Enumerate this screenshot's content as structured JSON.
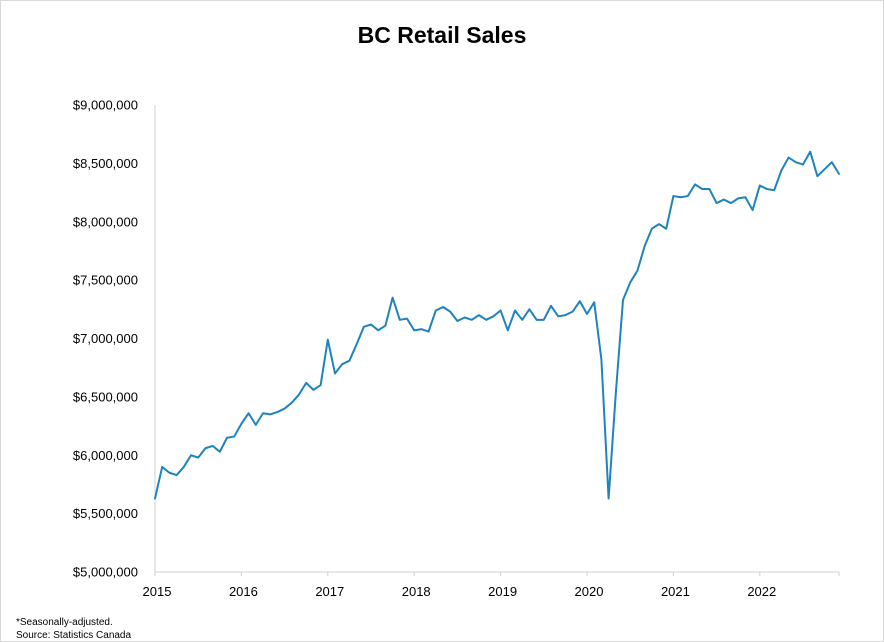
{
  "chart_data": {
    "type": "line",
    "title": "BC Retail Sales",
    "xlabel": "",
    "ylabel": "",
    "ylim": [
      5000000,
      9000000
    ],
    "xlim": [
      "2015-01",
      "2022-12"
    ],
    "y_ticks": [
      {
        "value": 5000000,
        "label": "$5,000,000"
      },
      {
        "value": 5500000,
        "label": "$5,500,000"
      },
      {
        "value": 6000000,
        "label": "$6,000,000"
      },
      {
        "value": 6500000,
        "label": "$6,500,000"
      },
      {
        "value": 7000000,
        "label": "$7,000,000"
      },
      {
        "value": 7500000,
        "label": "$7,500,000"
      },
      {
        "value": 8000000,
        "label": "$8,000,000"
      },
      {
        "value": 8500000,
        "label": "$8,500,000"
      },
      {
        "value": 9000000,
        "label": "$9,000,000"
      }
    ],
    "x_ticks": [
      "2015",
      "2016",
      "2017",
      "2018",
      "2019",
      "2020",
      "2021",
      "2022"
    ],
    "grid": false,
    "line_color": "#1f83bd",
    "series": [
      {
        "x": [
          "2015-01",
          "2015-02",
          "2015-03",
          "2015-04",
          "2015-05",
          "2015-06",
          "2015-07",
          "2015-08",
          "2015-09",
          "2015-10",
          "2015-11",
          "2015-12",
          "2016-01",
          "2016-02",
          "2016-03",
          "2016-04",
          "2016-05",
          "2016-06",
          "2016-07",
          "2016-08",
          "2016-09",
          "2016-10",
          "2016-11",
          "2016-12",
          "2017-01",
          "2017-02",
          "2017-03",
          "2017-04",
          "2017-05",
          "2017-06",
          "2017-07",
          "2017-08",
          "2017-09",
          "2017-10",
          "2017-11",
          "2017-12",
          "2018-01",
          "2018-02",
          "2018-03",
          "2018-04",
          "2018-05",
          "2018-06",
          "2018-07",
          "2018-08",
          "2018-09",
          "2018-10",
          "2018-11",
          "2018-12",
          "2019-01",
          "2019-02",
          "2019-03",
          "2019-04",
          "2019-05",
          "2019-06",
          "2019-07",
          "2019-08",
          "2019-09",
          "2019-10",
          "2019-11",
          "2019-12",
          "2020-01",
          "2020-02",
          "2020-03",
          "2020-04",
          "2020-05",
          "2020-06",
          "2020-07",
          "2020-08",
          "2020-09",
          "2020-10",
          "2020-11",
          "2020-12",
          "2021-01",
          "2021-02",
          "2021-03",
          "2021-04",
          "2021-05",
          "2021-06",
          "2021-07",
          "2021-08",
          "2021-09",
          "2021-10",
          "2021-11",
          "2021-12",
          "2022-01",
          "2022-02",
          "2022-03",
          "2022-04",
          "2022-05",
          "2022-06",
          "2022-07",
          "2022-08",
          "2022-09",
          "2022-10",
          "2022-11",
          "2022-12"
        ],
        "values": [
          5630000,
          5900000,
          5850000,
          5830000,
          5900000,
          6000000,
          5980000,
          6060000,
          6080000,
          6030000,
          6150000,
          6160000,
          6270000,
          6360000,
          6260000,
          6360000,
          6350000,
          6370000,
          6400000,
          6450000,
          6520000,
          6620000,
          6560000,
          6600000,
          6990000,
          6700000,
          6780000,
          6810000,
          6950000,
          7100000,
          7120000,
          7070000,
          7110000,
          7350000,
          7160000,
          7170000,
          7070000,
          7080000,
          7060000,
          7240000,
          7270000,
          7230000,
          7150000,
          7180000,
          7160000,
          7200000,
          7160000,
          7190000,
          7240000,
          7070000,
          7240000,
          7160000,
          7250000,
          7160000,
          7160000,
          7280000,
          7190000,
          7200000,
          7230000,
          7320000,
          7210000,
          7310000,
          6820000,
          5630000,
          6530000,
          7330000,
          7480000,
          7580000,
          7790000,
          7940000,
          7980000,
          7940000,
          8220000,
          8210000,
          8220000,
          8320000,
          8280000,
          8280000,
          8160000,
          8190000,
          8160000,
          8200000,
          8210000,
          8100000,
          8310000,
          8280000,
          8270000,
          8440000,
          8550000,
          8510000,
          8490000,
          8600000,
          8390000,
          8450000,
          8510000,
          8410000
        ]
      }
    ]
  },
  "footnotes": {
    "line1": "*Seasonally-adjusted.",
    "line2": "Source: Statistics Canada"
  }
}
